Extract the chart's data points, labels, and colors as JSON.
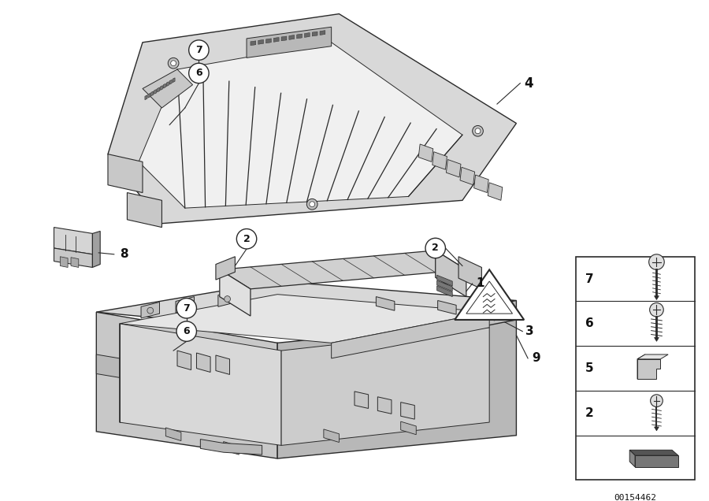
{
  "background_color": "#ffffff",
  "figure_width": 9.0,
  "figure_height": 6.36,
  "dpi": 100,
  "part_number": "00154462",
  "line_color": "#2a2a2a",
  "text_color": "#111111",
  "circle_color": "#ffffff",
  "light_gray": "#e8e8e8",
  "mid_gray": "#c8c8c8",
  "dark_gray": "#a0a0a0",
  "darker_gray": "#888888"
}
